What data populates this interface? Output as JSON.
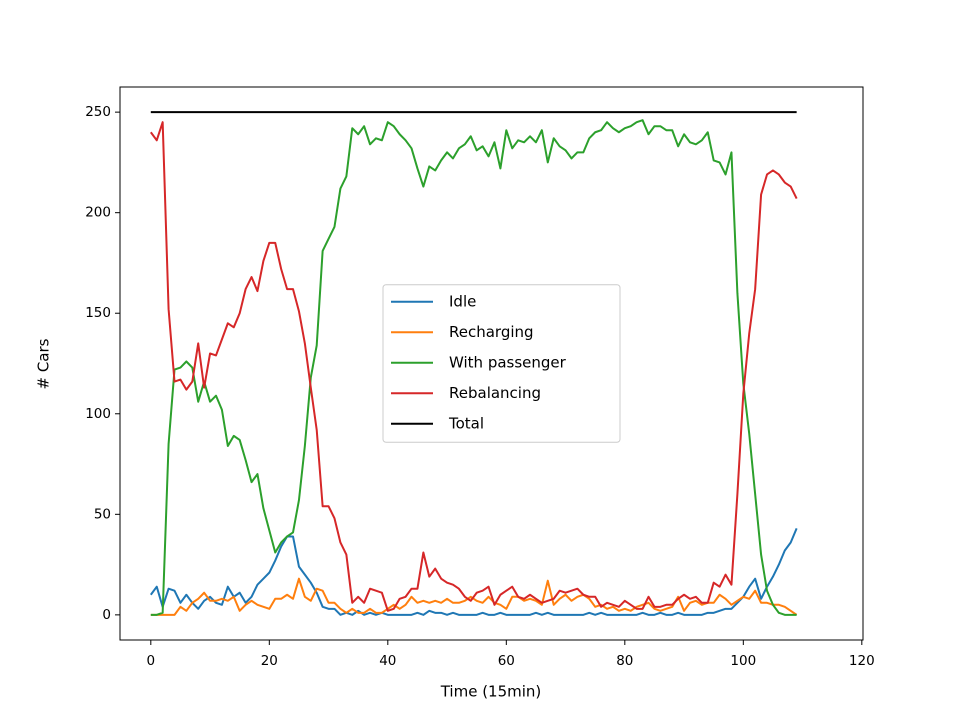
{
  "chart_data": {
    "type": "line",
    "x_label": "Time (15min)",
    "y_label": "# Cars",
    "x": [
      0,
      1,
      2,
      3,
      4,
      5,
      6,
      7,
      8,
      9,
      10,
      11,
      12,
      13,
      14,
      15,
      16,
      17,
      18,
      19,
      20,
      21,
      22,
      23,
      24,
      25,
      26,
      27,
      28,
      29,
      30,
      31,
      32,
      33,
      34,
      35,
      36,
      37,
      38,
      39,
      40,
      41,
      42,
      43,
      44,
      45,
      46,
      47,
      48,
      49,
      50,
      51,
      52,
      53,
      54,
      55,
      56,
      57,
      58,
      59,
      60,
      61,
      62,
      63,
      64,
      65,
      66,
      67,
      68,
      69,
      70,
      71,
      72,
      73,
      74,
      75,
      76,
      77,
      78,
      79,
      80,
      81,
      82,
      83,
      84,
      85,
      86,
      87,
      88,
      89,
      90,
      91,
      92,
      93,
      94,
      95,
      96,
      97,
      98,
      99,
      100,
      101,
      102,
      103,
      104,
      105,
      106,
      107,
      108,
      109
    ],
    "series": [
      {
        "name": "Idle",
        "color": "#1f77b4",
        "values": [
          10,
          14,
          4,
          13,
          12,
          6,
          10,
          6,
          3,
          7,
          9,
          6,
          5,
          14,
          9,
          11,
          6,
          9,
          15,
          18,
          21,
          27,
          34,
          39,
          39,
          24,
          20,
          16,
          11,
          4,
          3,
          3,
          0,
          1,
          0,
          2,
          0,
          1,
          0,
          1,
          0,
          0,
          0,
          0,
          0,
          1,
          0,
          2,
          1,
          1,
          0,
          1,
          0,
          0,
          0,
          0,
          1,
          0,
          0,
          1,
          0,
          0,
          0,
          0,
          0,
          1,
          0,
          1,
          0,
          0,
          0,
          0,
          0,
          0,
          1,
          0,
          1,
          0,
          0,
          0,
          0,
          0,
          0,
          1,
          0,
          0,
          1,
          0,
          0,
          1,
          0,
          0,
          0,
          0,
          1,
          1,
          2,
          3,
          3,
          6,
          9,
          14,
          18,
          8,
          14,
          19,
          25,
          32,
          36,
          43
        ]
      },
      {
        "name": "Recharging",
        "color": "#ff7f0e",
        "values": [
          0,
          0,
          0,
          0,
          0,
          4,
          2,
          6,
          8,
          11,
          7,
          7,
          8,
          7,
          9,
          2,
          5,
          7,
          5,
          4,
          3,
          8,
          8,
          10,
          8,
          18,
          9,
          7,
          13,
          12,
          6,
          6,
          3,
          1,
          3,
          1,
          1,
          3,
          1,
          1,
          3,
          5,
          3,
          5,
          9,
          6,
          7,
          6,
          7,
          6,
          8,
          6,
          6,
          7,
          9,
          7,
          6,
          9,
          6,
          5,
          3,
          9,
          9,
          7,
          8,
          7,
          5,
          17,
          5,
          8,
          10,
          7,
          9,
          10,
          8,
          4,
          5,
          3,
          4,
          2,
          3,
          2,
          4,
          5,
          6,
          3,
          2,
          3,
          4,
          9,
          2,
          6,
          7,
          5,
          6,
          6,
          10,
          8,
          5,
          7,
          9,
          8,
          12,
          6,
          6,
          5,
          5,
          4,
          2,
          0
        ]
      },
      {
        "name": "With passenger",
        "color": "#2ca02c",
        "values": [
          0,
          0,
          1,
          85,
          122,
          123,
          126,
          123,
          106,
          116,
          106,
          109,
          102,
          84,
          89,
          87,
          77,
          66,
          70,
          53,
          42,
          31,
          36,
          39,
          41,
          57,
          84,
          118,
          134,
          181,
          187,
          193,
          212,
          218,
          242,
          239,
          243,
          234,
          237,
          236,
          245,
          243,
          239,
          236,
          232,
          222,
          213,
          223,
          221,
          226,
          230,
          227,
          232,
          234,
          238,
          231,
          233,
          228,
          235,
          222,
          241,
          232,
          236,
          235,
          238,
          235,
          241,
          225,
          237,
          233,
          231,
          227,
          230,
          230,
          237,
          240,
          241,
          245,
          242,
          240,
          242,
          243,
          245,
          246,
          239,
          243,
          243,
          241,
          241,
          233,
          239,
          235,
          234,
          236,
          240,
          226,
          225,
          219,
          230,
          160,
          115,
          90,
          60,
          30,
          12,
          5,
          1,
          0,
          0,
          0
        ]
      },
      {
        "name": "Rebalancing",
        "color": "#d62728",
        "values": [
          240,
          236,
          245,
          152,
          116,
          117,
          112,
          116,
          135,
          113,
          130,
          129,
          137,
          145,
          143,
          150,
          162,
          168,
          161,
          176,
          185,
          185,
          172,
          162,
          162,
          151,
          135,
          113,
          92,
          54,
          54,
          48,
          36,
          30,
          6,
          9,
          6,
          13,
          12,
          11,
          2,
          3,
          8,
          9,
          13,
          13,
          31,
          19,
          23,
          18,
          16,
          15,
          13,
          9,
          7,
          11,
          12,
          14,
          5,
          10,
          12,
          14,
          9,
          8,
          10,
          8,
          6,
          7,
          8,
          12,
          11,
          12,
          13,
          10,
          9,
          9,
          4,
          6,
          5,
          4,
          7,
          5,
          3,
          3,
          9,
          4,
          4,
          5,
          5,
          8,
          10,
          8,
          9,
          6,
          6,
          16,
          14,
          20,
          15,
          60,
          110,
          140,
          162,
          209,
          219,
          221,
          219,
          215,
          213,
          207
        ]
      },
      {
        "name": "Total",
        "color": "#000000",
        "values": [
          250,
          250,
          250,
          250,
          250,
          250,
          250,
          250,
          250,
          250,
          250,
          250,
          250,
          250,
          250,
          250,
          250,
          250,
          250,
          250,
          250,
          250,
          250,
          250,
          250,
          250,
          250,
          250,
          250,
          250,
          250,
          250,
          250,
          250,
          250,
          250,
          250,
          250,
          250,
          250,
          250,
          250,
          250,
          250,
          250,
          250,
          250,
          250,
          250,
          250,
          250,
          250,
          250,
          250,
          250,
          250,
          250,
          250,
          250,
          250,
          250,
          250,
          250,
          250,
          250,
          250,
          250,
          250,
          250,
          250,
          250,
          250,
          250,
          250,
          250,
          250,
          250,
          250,
          250,
          250,
          250,
          250,
          250,
          250,
          250,
          250,
          250,
          250,
          250,
          250,
          250,
          250,
          250,
          250,
          250,
          250,
          250,
          250,
          250,
          250,
          250,
          250,
          250,
          250,
          250,
          250,
          250,
          250,
          250,
          250
        ]
      }
    ],
    "xlim": [
      -5.2,
      120.2
    ],
    "xticks": [
      0,
      20,
      40,
      60,
      80,
      100,
      120
    ],
    "ylim": [
      -12.5,
      262.5
    ],
    "yticks": [
      0,
      50,
      100,
      150,
      200,
      250
    ],
    "grid": false,
    "legend": "center"
  }
}
